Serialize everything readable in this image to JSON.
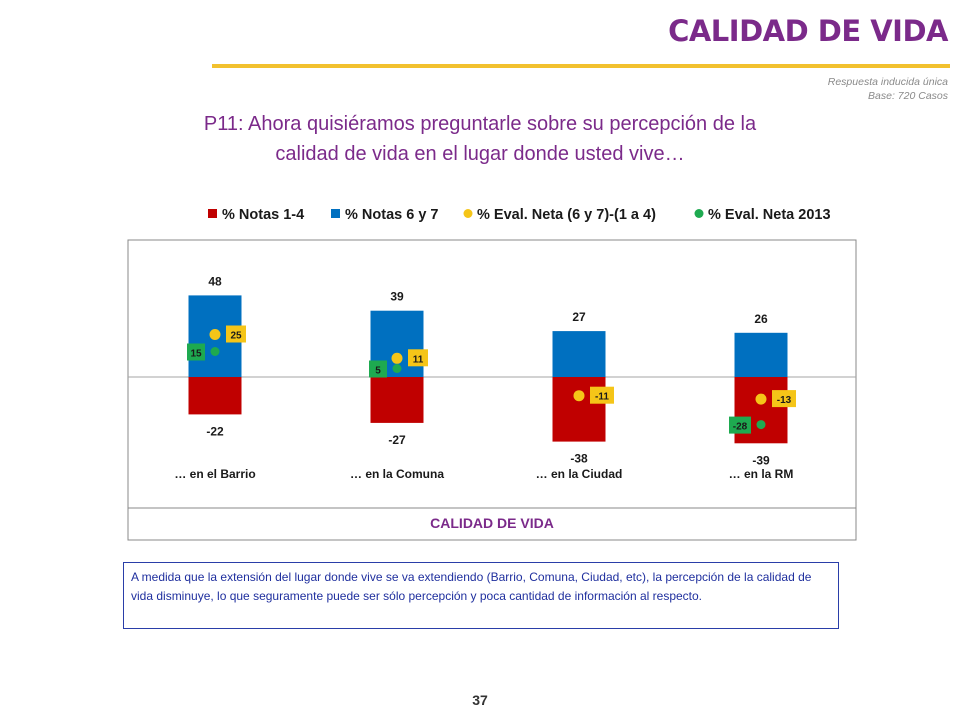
{
  "header": {
    "title": "CALIDAD DE VIDA",
    "response_note": "Respuesta inducida única",
    "base_note": "Base: 720 Casos"
  },
  "question": {
    "line1": "P11: Ahora quisiéramos preguntarle sobre su percepción de la",
    "line2": "calidad de vida en el lugar donde usted vive…"
  },
  "chart_data": {
    "type": "bar",
    "categories": [
      "… en el Barrio",
      "… en la Comuna",
      "… en la Ciudad",
      "… en la RM"
    ],
    "series": [
      {
        "name": "% Notas 1-4",
        "values": [
          -22,
          -27,
          -38,
          -39
        ],
        "kind": "bar",
        "color": "#c00000"
      },
      {
        "name": "% Notas 6 y 7",
        "values": [
          48,
          39,
          27,
          26
        ],
        "kind": "bar",
        "color": "#0070c0"
      },
      {
        "name": "% Eval. Neta (6 y 7)-(1 a 4)",
        "values": [
          25,
          11,
          -11,
          -13
        ],
        "kind": "point",
        "color": "#f5c518"
      },
      {
        "name": "% Eval. Neta 2013",
        "values": [
          15,
          5,
          null,
          -28
        ],
        "kind": "point",
        "color": "#1eaa50"
      }
    ],
    "xlabel": "CALIDAD DE VIDA",
    "ylim": [
      -45,
      75
    ],
    "legend_position": "top",
    "grid": false
  },
  "footnote": "A medida que la extensión del lugar donde vive se va extendiendo (Barrio, Comuna, Ciudad, etc), la percepción de la calidad de vida disminuye, lo que seguramente puede ser sólo percepción y poca cantidad de información al respecto.",
  "page_number": "37"
}
